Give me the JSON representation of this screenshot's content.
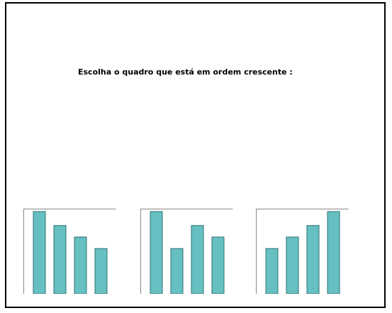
{
  "prompt": "Escolha o quadro que está em ordem crescente :",
  "colors": {
    "bar_fill": "#66c0c2",
    "bar_stroke": "#2f6f72",
    "card_border": "#888888"
  },
  "options": [
    {
      "id": "a",
      "bars": [
        1.0,
        0.83,
        0.69,
        0.55
      ]
    },
    {
      "id": "b",
      "bars": [
        1.0,
        0.55,
        0.83,
        0.69
      ]
    },
    {
      "id": "c",
      "bars": [
        0.55,
        0.69,
        0.83,
        1.0
      ]
    }
  ]
}
